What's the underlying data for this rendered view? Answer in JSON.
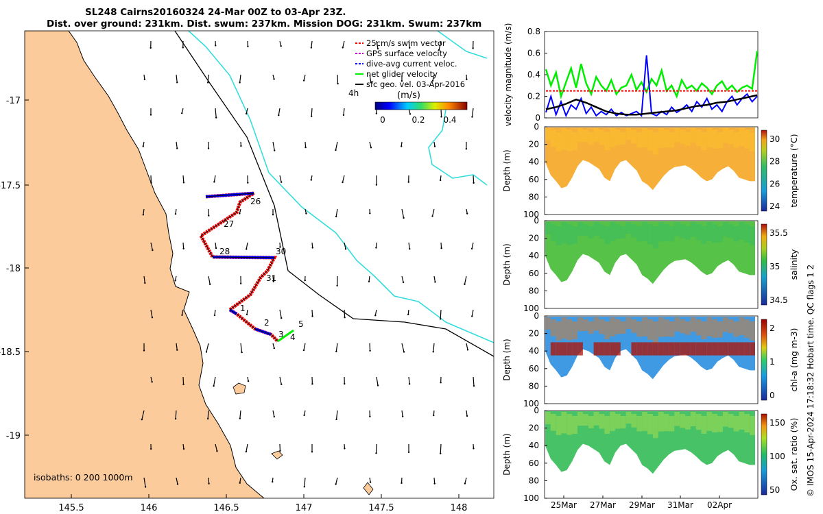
{
  "title": {
    "line1": "SL248 Cairns20160324 24-Mar 00Z to 03-Apr 23Z.",
    "line2": "Dist. over ground: 231km. Dist. swum: 237km. Mission DOG: 231km. Swum: 237km"
  },
  "map": {
    "legend": [
      {
        "label": "25cm/s swim vector",
        "color": "#ff0000",
        "style": "dashed"
      },
      {
        "label": "GPS surface velocity",
        "color": "#cc00cc",
        "style": "dashed"
      },
      {
        "label": "dive-avg current veloc.",
        "color": "#0000ff",
        "style": "dashed"
      },
      {
        "label": "net glider velocity",
        "color": "#00ee00",
        "style": "solid"
      },
      {
        "label": "sfc geo. vel. 03-Apr-2016",
        "color": "#000000",
        "style": "solid"
      }
    ],
    "time_label": "4h",
    "colorbar": {
      "title": "(m/s)",
      "ticks": [
        "0",
        "0.2",
        "0.4"
      ]
    },
    "xticks": [
      "145.5",
      "146",
      "146.5",
      "147",
      "147.5",
      "148"
    ],
    "yticks": [
      "-17",
      "-17.5",
      "-18",
      "-18.5",
      "-19"
    ],
    "isobaths": "isobaths: 0   200  1000m",
    "day_labels": [
      "26",
      "27",
      "28",
      "30",
      "31",
      "1",
      "2",
      "3",
      "4",
      "5"
    ],
    "colors": {
      "land": "#fbcb9c",
      "isobath_200": "#000000",
      "isobath_1000": "#33dddd"
    }
  },
  "chart_data": [
    {
      "type": "line",
      "ylabel": "velocity magnitude (m/s)",
      "ylim": [
        0,
        0.8
      ],
      "yticks": [
        "0",
        "0.2",
        "0.4",
        "0.6",
        "0.8"
      ],
      "series": [
        {
          "color": "#00ee00",
          "values": [
            0.45,
            0.3,
            0.42,
            0.2,
            0.33,
            0.46,
            0.28,
            0.5,
            0.32,
            0.22,
            0.38,
            0.3,
            0.25,
            0.35,
            0.22,
            0.28,
            0.3,
            0.4,
            0.26,
            0.33,
            0.24,
            0.36,
            0.3,
            0.44,
            0.25,
            0.3,
            0.2,
            0.35,
            0.27,
            0.3,
            0.25,
            0.32,
            0.28,
            0.22,
            0.3,
            0.34,
            0.26,
            0.3,
            0.24,
            0.28,
            0.3,
            0.27,
            0.62
          ]
        },
        {
          "color": "#0000ff",
          "values": [
            0.05,
            0.2,
            0.03,
            0.15,
            0.02,
            0.12,
            0.08,
            0.18,
            0.04,
            0.1,
            0.02,
            0.06,
            0.03,
            0.08,
            0.02,
            0.05,
            0.02,
            0.04,
            0.06,
            0.02,
            0.58,
            0.04,
            0.02,
            0.06,
            0.03,
            0.1,
            0.05,
            0.08,
            0.12,
            0.06,
            0.15,
            0.1,
            0.18,
            0.08,
            0.12,
            0.06,
            0.15,
            0.2,
            0.12,
            0.18,
            0.22,
            0.15,
            0.2
          ]
        },
        {
          "color": "#000000",
          "values": [
            0.08,
            0.1,
            0.13,
            0.17,
            0.14,
            0.1,
            0.06,
            0.04,
            0.03,
            0.03,
            0.04,
            0.05,
            0.06,
            0.07,
            0.09,
            0.11,
            0.12,
            0.14,
            0.15,
            0.17,
            0.19,
            0.21
          ]
        },
        {
          "color": "#ff0000",
          "values": [
            0.25,
            0.25
          ]
        }
      ]
    },
    {
      "type": "heatmap",
      "ylabel": "Depth (m)",
      "colorbar_label": "temperature (°C)",
      "cticks": [
        "24",
        "26",
        "28",
        "30"
      ],
      "yticks": [
        "0",
        "20",
        "40",
        "60",
        "80",
        "100"
      ]
    },
    {
      "type": "heatmap",
      "ylabel": "Depth (m)",
      "colorbar_label": "salinity",
      "cticks": [
        "34.5",
        "35",
        "35.5"
      ],
      "yticks": [
        "0",
        "20",
        "40",
        "60",
        "80",
        "100"
      ]
    },
    {
      "type": "heatmap",
      "ylabel": "Depth (m)",
      "colorbar_label": "chl-a (mg m-3)",
      "cticks": [
        "0",
        "1",
        "2"
      ],
      "yticks": [
        "0",
        "20",
        "40",
        "60",
        "80",
        "100"
      ]
    },
    {
      "type": "heatmap",
      "ylabel": "Depth (m)",
      "colorbar_label": "Ox. sat. ratio (%)",
      "cticks": [
        "50",
        "100",
        "150"
      ],
      "yticks": [
        "0",
        "20",
        "40",
        "60",
        "80",
        "100"
      ],
      "xticks": [
        "25Mar",
        "27Mar",
        "29Mar",
        "31Mar",
        "02Apr"
      ]
    }
  ],
  "footer": "© IMOS 15-Apr-2024 17:18:32 Hobart time. QC flags 1  2"
}
